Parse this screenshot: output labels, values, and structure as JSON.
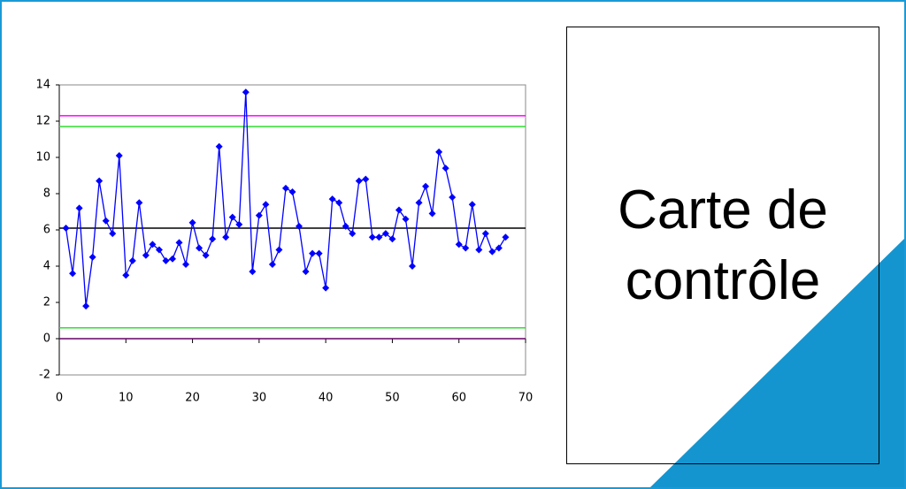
{
  "slide": {
    "title": "Carte de contrôle"
  },
  "chart_data": {
    "type": "line",
    "x": [
      1,
      2,
      3,
      4,
      5,
      6,
      7,
      8,
      9,
      10,
      11,
      12,
      13,
      14,
      15,
      16,
      17,
      18,
      19,
      20,
      21,
      22,
      23,
      24,
      25,
      26,
      27,
      28,
      29,
      30,
      31,
      32,
      33,
      34,
      35,
      36,
      37,
      38,
      39,
      40,
      41,
      42,
      43,
      44,
      45,
      46,
      47,
      48,
      49,
      50,
      51,
      52,
      53,
      54,
      55,
      56,
      57,
      58,
      59,
      60,
      61,
      62,
      63,
      64,
      65,
      66,
      67
    ],
    "series": [
      {
        "color": "#0000ff",
        "values": [
          6.1,
          3.6,
          7.2,
          1.8,
          4.5,
          8.7,
          6.5,
          5.8,
          10.1,
          3.5,
          4.3,
          7.5,
          4.6,
          5.2,
          4.9,
          4.3,
          4.4,
          5.3,
          4.1,
          6.4,
          5.0,
          4.6,
          5.5,
          10.6,
          5.6,
          6.7,
          6.3,
          13.6,
          3.7,
          6.8,
          7.4,
          4.1,
          4.9,
          8.3,
          8.1,
          6.2,
          3.7,
          4.7,
          4.7,
          2.8,
          7.7,
          7.5,
          6.2,
          5.8,
          8.7,
          8.8,
          5.6,
          5.6,
          5.8,
          5.5,
          7.1,
          6.6,
          4.0,
          7.5,
          8.4,
          6.9,
          10.3,
          9.4,
          7.8,
          5.2,
          5.0,
          7.4,
          4.9,
          5.8,
          4.8,
          5.0,
          5.6
        ]
      }
    ],
    "reference_lines": [
      {
        "value": 12.3,
        "color": "#ff00ff"
      },
      {
        "value": 11.7,
        "color": "#33dd33"
      },
      {
        "value": 6.1,
        "color": "#000000"
      },
      {
        "value": 0.6,
        "color": "#33dd33"
      },
      {
        "value": 0,
        "color": "#660066"
      }
    ],
    "xlim": [
      0,
      70
    ],
    "xticks": [
      0,
      10,
      20,
      30,
      40,
      50,
      60,
      70
    ],
    "ylim": [
      -2,
      14
    ],
    "yticks": [
      -2,
      0,
      2,
      4,
      6,
      8,
      10,
      12,
      14
    ]
  }
}
